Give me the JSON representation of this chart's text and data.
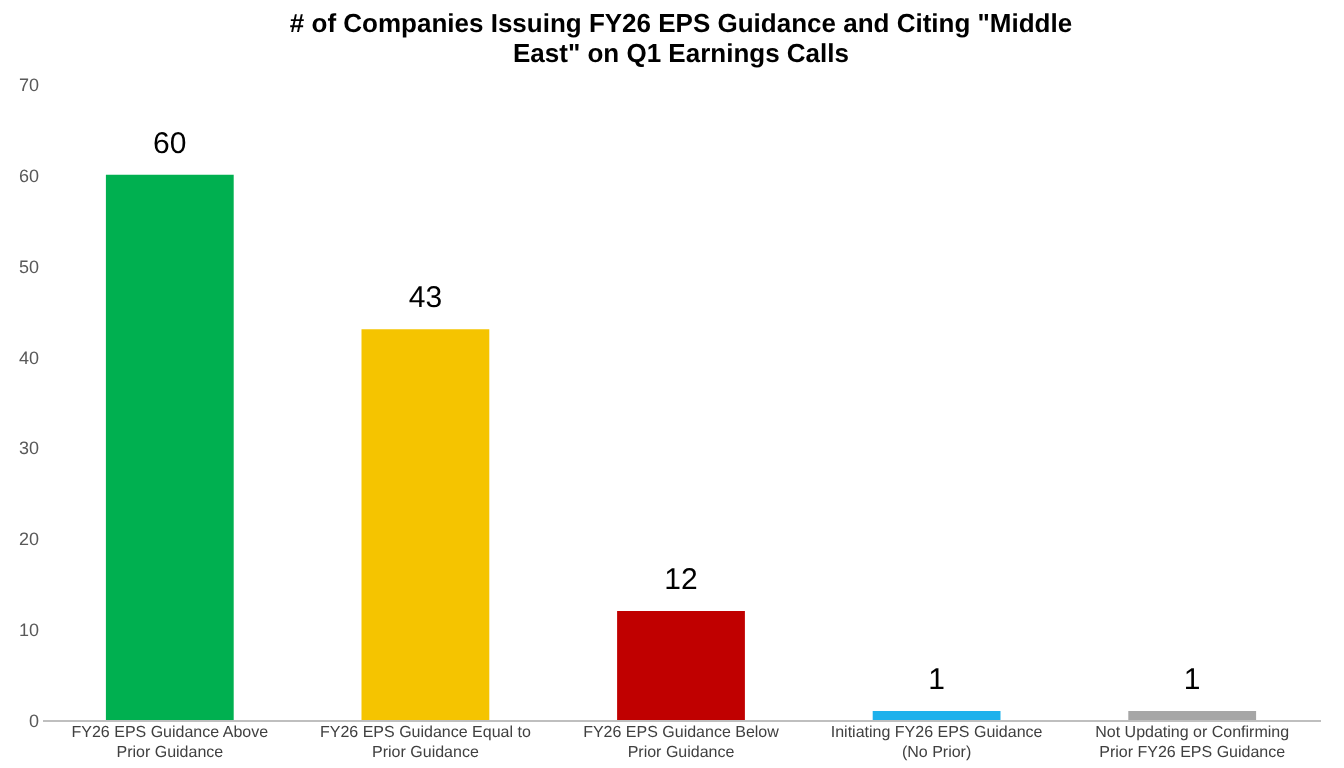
{
  "chart_data": {
    "type": "bar",
    "title": "# of Companies Issuing FY26 EPS Guidance and Citing \"Middle East\" on Q1 Earnings Calls",
    "categories": [
      "FY26 EPS Guidance Above Prior Guidance",
      "FY26 EPS Guidance Equal to Prior Guidance",
      "FY26 EPS Guidance Below Prior Guidance",
      "Initiating FY26 EPS Guidance (No Prior)",
      "Not Updating or Confirming Prior FY26 EPS Guidance"
    ],
    "values": [
      60,
      43,
      12,
      1,
      1
    ],
    "colors": [
      "#00b050",
      "#f5c400",
      "#c00000",
      "#1eb1ec",
      "#a6a6a6"
    ],
    "ylim": [
      0,
      70
    ],
    "yticks": [
      0,
      10,
      20,
      30,
      40,
      50,
      60,
      70
    ],
    "grid": false,
    "data_labels": true
  }
}
